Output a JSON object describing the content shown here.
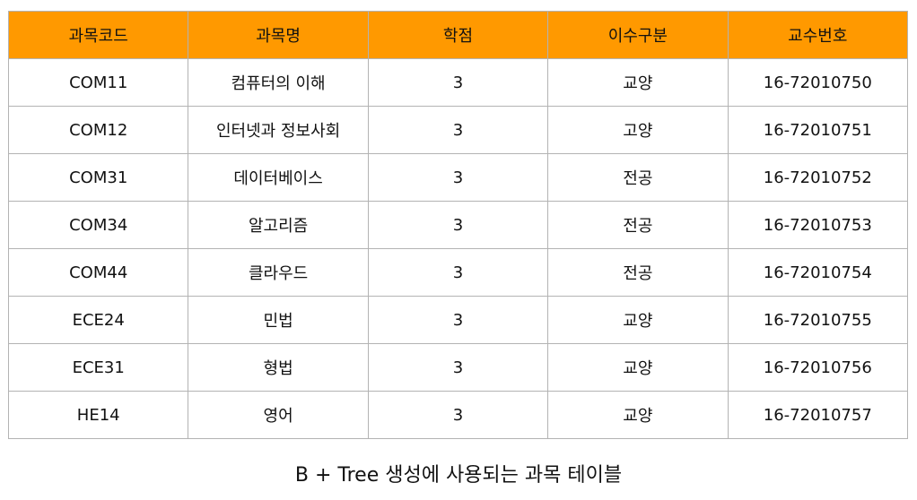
{
  "table": {
    "headers": [
      "과목코드",
      "과목명",
      "학점",
      "이수구분",
      "교수번호"
    ],
    "rows": [
      [
        "COM11",
        "컴퓨터의 이해",
        "3",
        "교양",
        "16-72010750"
      ],
      [
        "COM12",
        "인터넷과 정보사회",
        "3",
        "고양",
        "16-72010751"
      ],
      [
        "COM31",
        "데이터베이스",
        "3",
        "전공",
        "16-72010752"
      ],
      [
        "COM34",
        "알고리즘",
        "3",
        "전공",
        "16-72010753"
      ],
      [
        "COM44",
        "클라우드",
        "3",
        "전공",
        "16-72010754"
      ],
      [
        "ECE24",
        "민법",
        "3",
        "교양",
        "16-72010755"
      ],
      [
        "ECE31",
        "형법",
        "3",
        "교양",
        "16-72010756"
      ],
      [
        "HE14",
        "영어",
        "3",
        "교양",
        "16-72010757"
      ]
    ]
  },
  "caption": "B + Tree 생성에 사용되는 과목 테이블",
  "colors": {
    "header_bg": "#ff9900",
    "border": "#b3b3b3"
  }
}
